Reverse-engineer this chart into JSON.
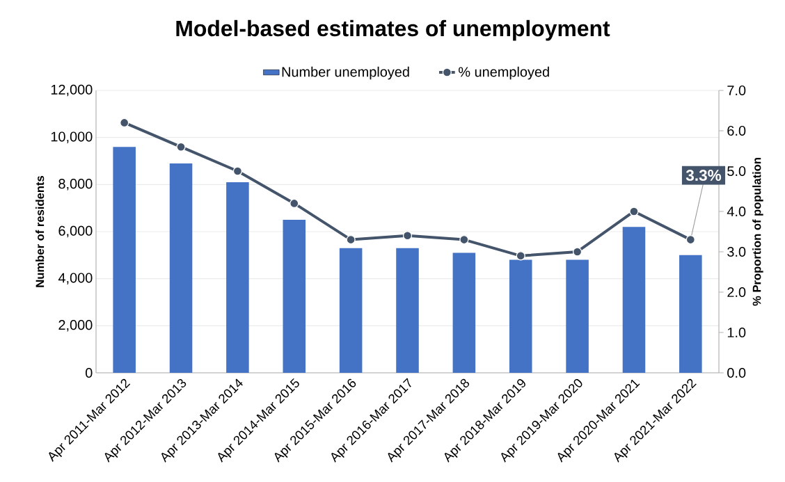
{
  "chart_data": {
    "type": "bar",
    "title": "Model-based estimates of unemployment",
    "categories": [
      "Apr 2011-Mar 2012",
      "Apr 2012-Mar 2013",
      "Apr 2013-Mar 2014",
      "Apr 2014-Mar 2015",
      "Apr 2015-Mar 2016",
      "Apr 2016-Mar 2017",
      "Apr 2017-Mar 2018",
      "Apr 2018-Mar 2019",
      "Apr 2019-Mar 2020",
      "Apr 2020-Mar 2021",
      "Apr 2021-Mar 2022"
    ],
    "series": [
      {
        "name": "Number unemployed",
        "color": "#4472c4",
        "values": [
          9600,
          8900,
          8100,
          6500,
          5300,
          5300,
          5100,
          4800,
          4800,
          6200,
          5000
        ]
      },
      {
        "name": "% unemployed",
        "type": "line",
        "axis": "y2",
        "color": "#44546a",
        "marker": "circle",
        "values": [
          6.2,
          5.6,
          5.0,
          4.2,
          3.3,
          3.4,
          3.3,
          2.9,
          3.0,
          4.0,
          3.3
        ],
        "value_labels": [
          null,
          null,
          null,
          null,
          null,
          null,
          null,
          null,
          null,
          null,
          "3.3%"
        ]
      }
    ],
    "ylabel": "Number of residents",
    "y2label": "% Proportion of population",
    "ylim": [
      0,
      12000
    ],
    "yticks": [
      0,
      {
        "value": 2000,
        "label": "2,000"
      },
      {
        "value": 4000,
        "label": "4,000"
      },
      {
        "value": 6000,
        "label": "6,000"
      },
      {
        "value": 8000,
        "label": "8,000"
      },
      {
        "value": 10000,
        "label": "10,000"
      },
      {
        "value": 12000,
        "label": "12,000"
      }
    ],
    "y2lim": [
      0,
      7
    ],
    "y2ticks": [
      {
        "value": 0,
        "label": "0.0"
      },
      {
        "value": 1,
        "label": "1.0"
      },
      {
        "value": 2,
        "label": "2.0"
      },
      {
        "value": 3,
        "label": "3.0"
      },
      {
        "value": 4,
        "label": "4.0"
      },
      {
        "value": 5,
        "label": "5.0"
      },
      {
        "value": 6,
        "label": "6.0"
      },
      {
        "value": 7,
        "label": "7.0"
      }
    ],
    "grid": "y",
    "legend": "top"
  }
}
